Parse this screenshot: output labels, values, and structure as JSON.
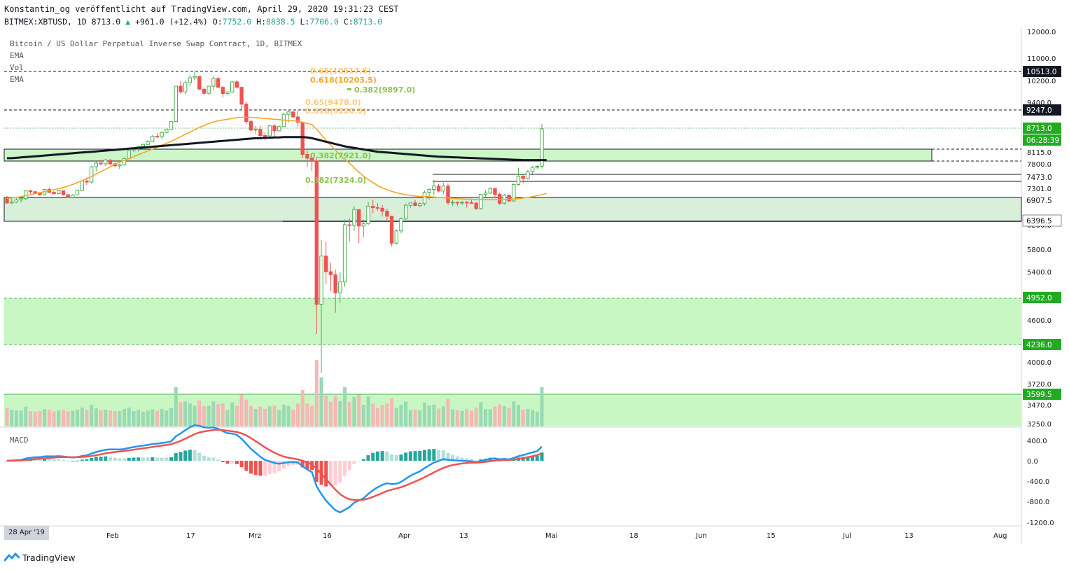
{
  "header": {
    "line1": "Konstantin_og veröffentlicht auf TradingView.com, April 29, 2020 19:31:23 CEST",
    "symbol": "BITMEX:XBTUSD, 1D",
    "price": "8713.0",
    "change": "+961.0 (+12.4%)",
    "o_label": "O:",
    "o_val": "7752.0",
    "h_label": "H:",
    "h_val": "8838.5",
    "l_label": "L:",
    "l_val": "7706.0",
    "c_label": "C:",
    "c_val": "8713.0"
  },
  "legend": {
    "title": "Bitcoin / US Dollar Perpetual Inverse Swap Contract, 1D, BITMEX",
    "ind1": "EMA",
    "ind2": "Vol",
    "ind3": "EMA",
    "macd": "MACD"
  },
  "colors": {
    "up": "#26a69a",
    "down": "#ef5350",
    "green_zone": "#ccf5c8",
    "ema_fast": "#f7a623",
    "ema_slow": "#131722",
    "macd_line": "#2196f3",
    "signal_line": "#ef5350",
    "fib_orange": "#f7a623",
    "fib_green": "#8bc34a"
  },
  "chart_data": {
    "type": "candlestick",
    "price_axis": [
      "12000.0",
      "11000.0",
      "10200.0",
      "9400.0",
      "8115.0",
      "7800.0",
      "7301.0",
      "6200.0",
      "5800.0",
      "5400.0",
      "4600.0",
      "4000.0",
      "3720.0",
      "3470.0",
      "3250.0"
    ],
    "price_labels_highlight": [
      {
        "value": "10513.0",
        "style": "dark"
      },
      {
        "value": "9247.0",
        "style": "dark"
      },
      {
        "value": "8713.0",
        "style": "green"
      },
      {
        "value": "06:28:39",
        "style": "green"
      },
      {
        "value": "7473.0",
        "style": "plain"
      },
      {
        "value": "6907.5",
        "style": "plain"
      },
      {
        "value": "6396.5",
        "style": "plain"
      },
      {
        "value": "4952.0",
        "style": "green"
      },
      {
        "value": "4236.0",
        "style": "green"
      },
      {
        "value": "3599.5",
        "style": "green"
      }
    ],
    "macd_axis": [
      "400.0",
      "0.0",
      "-400.0",
      "-800.0",
      "-1200.0"
    ],
    "time_axis": [
      "Feb",
      "17",
      "Mrz",
      "16",
      "Apr",
      "13",
      "Mai",
      "18",
      "Jun",
      "15",
      "Jul",
      "13",
      "Aug"
    ],
    "cursor_date": "28 Apr '19",
    "fib_labels": [
      {
        "text": "0.65(10517.5)",
        "color": "orange"
      },
      {
        "text": "0.618(10203.5)",
        "color": "orange"
      },
      {
        "text": "0.382(9897.0)",
        "color": "green"
      },
      {
        "text": "0.65(9478.0)",
        "color": "orange"
      },
      {
        "text": "0.618(9220.5)",
        "color": "orange"
      },
      {
        "text": "0.382(7921.0)",
        "color": "green"
      },
      {
        "text": "0.382(7324.0)",
        "color": "green"
      }
    ],
    "ohlc": [
      [
        6990,
        7070,
        6830,
        6860
      ],
      [
        6860,
        6990,
        6830,
        6890
      ],
      [
        6890,
        7000,
        6860,
        6950
      ],
      [
        6950,
        7010,
        6880,
        6990
      ],
      [
        6990,
        7240,
        6950,
        7230
      ],
      [
        7230,
        7250,
        7140,
        7200
      ],
      [
        7200,
        7220,
        7130,
        7150
      ],
      [
        7150,
        7200,
        7080,
        7110
      ],
      [
        7110,
        7280,
        7090,
        7270
      ],
      [
        7270,
        7320,
        7160,
        7180
      ],
      [
        7180,
        7220,
        7120,
        7140
      ],
      [
        7140,
        7250,
        7120,
        7230
      ],
      [
        7230,
        7240,
        7080,
        7110
      ],
      [
        7110,
        7120,
        7020,
        7030
      ],
      [
        7030,
        7130,
        7000,
        7100
      ],
      [
        7100,
        7260,
        7090,
        7240
      ],
      [
        7240,
        7470,
        7220,
        7450
      ],
      [
        7450,
        7520,
        7370,
        7430
      ],
      [
        7430,
        7760,
        7400,
        7740
      ],
      [
        7740,
        7860,
        7640,
        7820
      ],
      [
        7820,
        7910,
        7770,
        7800
      ],
      [
        7800,
        7930,
        7760,
        7900
      ],
      [
        7900,
        7920,
        7780,
        7800
      ],
      [
        7800,
        7840,
        7730,
        7760
      ],
      [
        7760,
        7810,
        7700,
        7780
      ],
      [
        7780,
        7960,
        7760,
        7940
      ],
      [
        7940,
        8170,
        7920,
        8150
      ],
      [
        8150,
        8220,
        8110,
        8180
      ],
      [
        8180,
        8280,
        8120,
        8260
      ],
      [
        8260,
        8330,
        8240,
        8310
      ],
      [
        8310,
        8420,
        8290,
        8380
      ],
      [
        8380,
        8550,
        8370,
        8520
      ],
      [
        8520,
        8600,
        8470,
        8510
      ],
      [
        8510,
        8650,
        8450,
        8620
      ],
      [
        8620,
        8720,
        8590,
        8700
      ],
      [
        8700,
        8910,
        8680,
        8900
      ],
      [
        8900,
        10010,
        8880,
        9990
      ],
      [
        9990,
        10190,
        9720,
        9780
      ],
      [
        9780,
        10200,
        9700,
        10120
      ],
      [
        10120,
        10410,
        9990,
        10300
      ],
      [
        10300,
        10520,
        10200,
        10340
      ],
      [
        10340,
        10370,
        9840,
        9880
      ],
      [
        9880,
        9950,
        9650,
        9730
      ],
      [
        9730,
        10000,
        9680,
        9990
      ],
      [
        9990,
        10350,
        9850,
        10270
      ],
      [
        10270,
        10320,
        9930,
        9950
      ],
      [
        9950,
        10000,
        9580,
        9720
      ],
      [
        9720,
        9800,
        9650,
        9780
      ],
      [
        9780,
        10190,
        9730,
        10150
      ],
      [
        10150,
        10220,
        9900,
        9950
      ],
      [
        9950,
        9980,
        9210,
        9350
      ],
      [
        9350,
        9410,
        8840,
        8900
      ],
      [
        8900,
        8950,
        8640,
        8680
      ],
      [
        8680,
        8780,
        8580,
        8700
      ],
      [
        8700,
        8790,
        8500,
        8540
      ],
      [
        8540,
        8620,
        8420,
        8530
      ],
      [
        8530,
        8810,
        8510,
        8790
      ],
      [
        8790,
        8830,
        8500,
        8660
      ],
      [
        8660,
        8800,
        8640,
        8770
      ],
      [
        8770,
        9130,
        8760,
        9090
      ],
      [
        9090,
        9200,
        8880,
        9150
      ],
      [
        9150,
        9160,
        8990,
        9020
      ],
      [
        9020,
        9190,
        8780,
        8880
      ],
      [
        8880,
        8900,
        7950,
        8050
      ],
      [
        8050,
        8150,
        7730,
        7950
      ],
      [
        7950,
        7980,
        7660,
        7880
      ],
      [
        7880,
        7950,
        4400,
        4860
      ],
      [
        4860,
        5950,
        3860,
        5680
      ],
      [
        5680,
        5930,
        5200,
        5400
      ],
      [
        5400,
        5560,
        5080,
        5350
      ],
      [
        5350,
        5440,
        4720,
        5050
      ],
      [
        5050,
        5390,
        4880,
        5230
      ],
      [
        5230,
        6360,
        5150,
        6200
      ],
      [
        6200,
        6400,
        5930,
        6190
      ],
      [
        6190,
        6770,
        6100,
        6660
      ],
      [
        6660,
        6670,
        5900,
        6180
      ],
      [
        6180,
        6360,
        6000,
        6230
      ],
      [
        6230,
        6890,
        6200,
        6760
      ],
      [
        6760,
        6960,
        6550,
        6720
      ],
      [
        6720,
        6850,
        6620,
        6700
      ],
      [
        6700,
        6800,
        6450,
        6610
      ],
      [
        6610,
        6690,
        6280,
        6460
      ],
      [
        6460,
        6470,
        5850,
        5900
      ],
      [
        5900,
        6120,
        5880,
        6100
      ],
      [
        6100,
        6420,
        6060,
        6380
      ],
      [
        6380,
        6840,
        6350,
        6790
      ],
      [
        6790,
        6870,
        6720,
        6860
      ],
      [
        6860,
        6950,
        6770,
        6780
      ],
      [
        6780,
        6870,
        6730,
        6840
      ],
      [
        6840,
        7240,
        6780,
        7180
      ],
      [
        7180,
        7300,
        6960,
        7270
      ],
      [
        7270,
        7470,
        7100,
        7350
      ],
      [
        7350,
        7390,
        7180,
        7220
      ],
      [
        7220,
        7420,
        7120,
        7350
      ],
      [
        7350,
        7400,
        6800,
        6870
      ],
      [
        6870,
        6950,
        6770,
        6880
      ],
      [
        6880,
        6910,
        6770,
        6860
      ],
      [
        6860,
        6920,
        6800,
        6880
      ],
      [
        6880,
        6920,
        6720,
        6870
      ],
      [
        6870,
        6960,
        6830,
        6850
      ],
      [
        6850,
        6900,
        6650,
        6690
      ],
      [
        6690,
        7130,
        6660,
        7120
      ],
      [
        7120,
        7240,
        7050,
        7160
      ],
      [
        7160,
        7320,
        7130,
        7300
      ],
      [
        7300,
        7310,
        7020,
        7120
      ],
      [
        7120,
        7180,
        6800,
        6850
      ],
      [
        6850,
        7130,
        6820,
        7100
      ],
      [
        7100,
        7110,
        6880,
        6920
      ],
      [
        6920,
        7400,
        6900,
        7380
      ],
      [
        7380,
        7720,
        7360,
        7550
      ],
      [
        7550,
        7570,
        7400,
        7500
      ],
      [
        7500,
        7680,
        7480,
        7640
      ],
      [
        7640,
        7760,
        7600,
        7730
      ],
      [
        7730,
        7780,
        7690,
        7750
      ],
      [
        7752,
        8838.5,
        7706,
        8713
      ]
    ],
    "ema_fast": [
      7000,
      7010,
      7030,
      7050,
      7080,
      7110,
      7140,
      7170,
      7200,
      7230,
      7260,
      7290,
      7320,
      7350,
      7380,
      7420,
      7460,
      7500,
      7540,
      7590,
      7640,
      7690,
      7740,
      7790,
      7840,
      7890,
      7940,
      7990,
      8040,
      8090,
      8140,
      8190,
      8240,
      8290,
      8340,
      8390,
      8450,
      8510,
      8570,
      8630,
      8690,
      8750,
      8800,
      8850,
      8890,
      8920,
      8940,
      8960,
      8980,
      9000,
      9010,
      9010,
      9010,
      9000,
      8990,
      8980,
      8970,
      8960,
      8950,
      8940,
      8930,
      8920,
      8910,
      8880,
      8850,
      8820,
      8700,
      8560,
      8420,
      8290,
      8160,
      8030,
      7920,
      7820,
      7720,
      7630,
      7550,
      7480,
      7420,
      7360,
      7310,
      7260,
      7210,
      7170,
      7140,
      7110,
      7090,
      7070,
      7060,
      7050,
      7050,
      7040,
      7030,
      7020,
      7010,
      7000,
      6990,
      6980,
      6970,
      6970,
      6960,
      6960,
      6960,
      6960,
      6960,
      6960,
      6960,
      6970,
      6980,
      6990,
      7010,
      7030,
      7050,
      7080,
      7110,
      7150
    ],
    "ema_slow": [
      7950,
      7950,
      7960,
      7970,
      7980,
      7990,
      8000,
      8010,
      8020,
      8030,
      8040,
      8050,
      8060,
      8070,
      8080,
      8090,
      8100,
      8110,
      8120,
      8130,
      8140,
      8150,
      8160,
      8170,
      8180,
      8190,
      8200,
      8210,
      8220,
      8230,
      8240,
      8250,
      8260,
      8270,
      8280,
      8290,
      8300,
      8310,
      8320,
      8330,
      8340,
      8350,
      8360,
      8370,
      8380,
      8390,
      8400,
      8410,
      8420,
      8430,
      8440,
      8450,
      8460,
      8470,
      8470,
      8480,
      8480,
      8490,
      8490,
      8500,
      8500,
      8500,
      8500,
      8500,
      8490,
      8470,
      8440,
      8410,
      8380,
      8350,
      8320,
      8290,
      8260,
      8240,
      8220,
      8200,
      8180,
      8160,
      8140,
      8120,
      8110,
      8100,
      8090,
      8080,
      8070,
      8060,
      8050,
      8040,
      8030,
      8020,
      8010,
      8000,
      7990,
      7985,
      7980,
      7975,
      7970,
      7965,
      7960,
      7955,
      7950,
      7945,
      7940,
      7935,
      7930,
      7925,
      7920,
      7915,
      7910,
      7905,
      7900,
      7900,
      7900,
      7900,
      7900,
      7900
    ]
  }
}
